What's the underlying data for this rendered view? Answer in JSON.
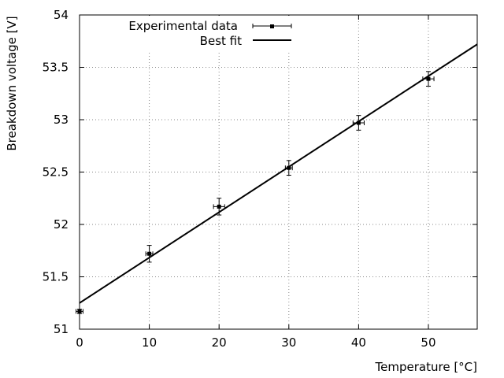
{
  "chart_data": {
    "type": "scatter",
    "xlabel": "Temperature [°C]",
    "ylabel": "Breakdown voltage [V]",
    "xlim": [
      0,
      57
    ],
    "ylim": [
      51,
      54
    ],
    "grid": true,
    "legend_position": "top-left",
    "x_ticks": [
      0,
      10,
      20,
      30,
      40,
      50
    ],
    "x_tick_labels": [
      "0",
      "10",
      "20",
      "30",
      "40",
      "50"
    ],
    "y_ticks": [
      51,
      51.5,
      52,
      52.5,
      53,
      53.5,
      54
    ],
    "y_tick_labels": [
      "51",
      "51.5",
      "52",
      "52.5",
      "53",
      "53.5",
      "54"
    ],
    "series": [
      {
        "name": "Experimental data",
        "kind": "points_with_errorbars",
        "color": "#000000",
        "x": [
          0,
          10,
          20,
          30,
          40,
          50
        ],
        "y": [
          51.17,
          51.72,
          52.17,
          52.54,
          52.97,
          53.39
        ],
        "x_err": [
          0.5,
          0.5,
          0.8,
          0.5,
          0.8,
          0.8
        ],
        "y_err": [
          0.02,
          0.08,
          0.08,
          0.07,
          0.07,
          0.07
        ]
      },
      {
        "name": "Best fit",
        "kind": "line",
        "color": "#000000",
        "x": [
          0,
          57
        ],
        "y": [
          51.25,
          53.72
        ]
      }
    ]
  }
}
